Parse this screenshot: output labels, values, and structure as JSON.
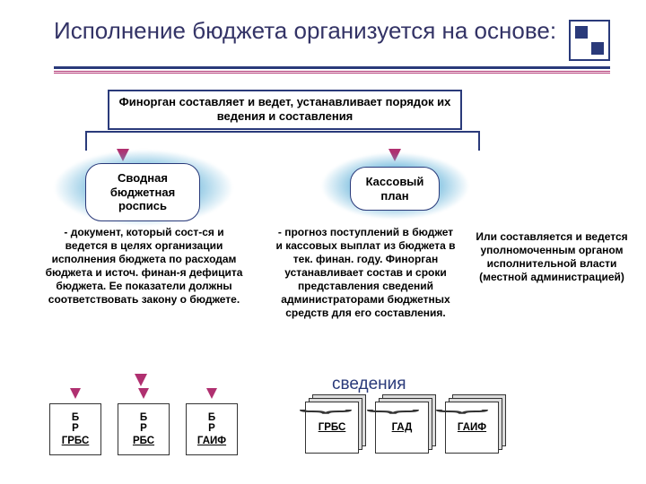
{
  "title": "Исполнение бюджета организуется на основе:",
  "top_box": "Финорган составляет и ведет, устанавливает порядок их ведения и составления",
  "rounded_left": "Сводная бюджетная роспись",
  "rounded_right": "Кассовый план",
  "desc_left": "- документ, который сост-ся и ведется в целях организации исполнения бюджета по расходам бюджета и источ. финан-я дефицита бюджета.\nЕе показатели должны соответствовать закону о бюджете.",
  "desc_mid": "- прогноз поступлений в бюджет и кассовых выплат из бюджета в тек. финан. году.\nФинорган устанавливает состав и сроки представления сведений администраторами бюджетных средств для его составления.",
  "desc_right": "Или составляется и ведется уполномоченным органом исполнительной власти (местной администрацией)",
  "svedeniya": "сведения",
  "cardsA": [
    {
      "lines": [
        "Б",
        "Р"
      ],
      "under": "ГРБС"
    },
    {
      "lines": [
        "Б",
        "Р"
      ],
      "under": "РБС"
    },
    {
      "lines": [
        "Б",
        "Р"
      ],
      "under": "ГАИФ"
    }
  ],
  "cardsB": [
    {
      "label": "ГРБС"
    },
    {
      "label": "ГАД"
    },
    {
      "label": "ГАИФ"
    }
  ],
  "colors": {
    "heading": "#333366",
    "border_dark": "#2a3a7a",
    "accent": "#b03070",
    "aura": "#5eb0d8",
    "text": "#000000"
  }
}
